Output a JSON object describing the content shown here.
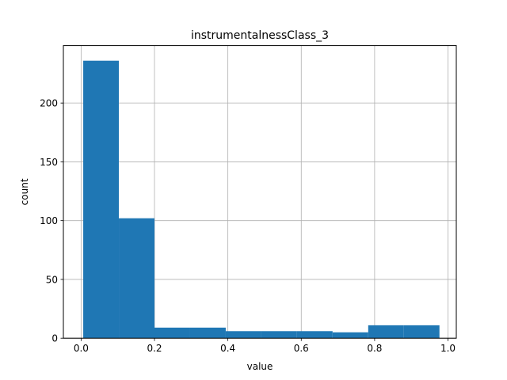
{
  "chart_data": {
    "type": "bar",
    "title": "instrumentalnessClass_3",
    "xlabel": "value",
    "ylabel": "count",
    "xlim": [
      -0.0483,
      1.0226
    ],
    "ylim": [
      0,
      248.85
    ],
    "grid": true,
    "bar_color": "#1f77b4",
    "bins": [
      {
        "x0": 0.0058,
        "x1": 0.1029,
        "count": 236
      },
      {
        "x0": 0.1029,
        "x1": 0.2,
        "count": 102
      },
      {
        "x0": 0.2,
        "x1": 0.2971,
        "count": 9
      },
      {
        "x0": 0.2971,
        "x1": 0.3942,
        "count": 9
      },
      {
        "x0": 0.3942,
        "x1": 0.4913,
        "count": 6
      },
      {
        "x0": 0.4913,
        "x1": 0.5883,
        "count": 6
      },
      {
        "x0": 0.5883,
        "x1": 0.6854,
        "count": 6
      },
      {
        "x0": 0.6854,
        "x1": 0.7825,
        "count": 5
      },
      {
        "x0": 0.7825,
        "x1": 0.8796,
        "count": 11
      },
      {
        "x0": 0.8796,
        "x1": 0.9767,
        "count": 11
      }
    ],
    "xticks": [
      {
        "value": 0.0,
        "label": "0.0"
      },
      {
        "value": 0.2,
        "label": "0.2"
      },
      {
        "value": 0.4,
        "label": "0.4"
      },
      {
        "value": 0.6,
        "label": "0.6"
      },
      {
        "value": 0.8,
        "label": "0.8"
      },
      {
        "value": 1.0,
        "label": "1.0"
      }
    ],
    "yticks": [
      {
        "value": 0,
        "label": "0"
      },
      {
        "value": 50,
        "label": "50"
      },
      {
        "value": 100,
        "label": "100"
      },
      {
        "value": 150,
        "label": "150"
      },
      {
        "value": 200,
        "label": "200"
      }
    ]
  }
}
